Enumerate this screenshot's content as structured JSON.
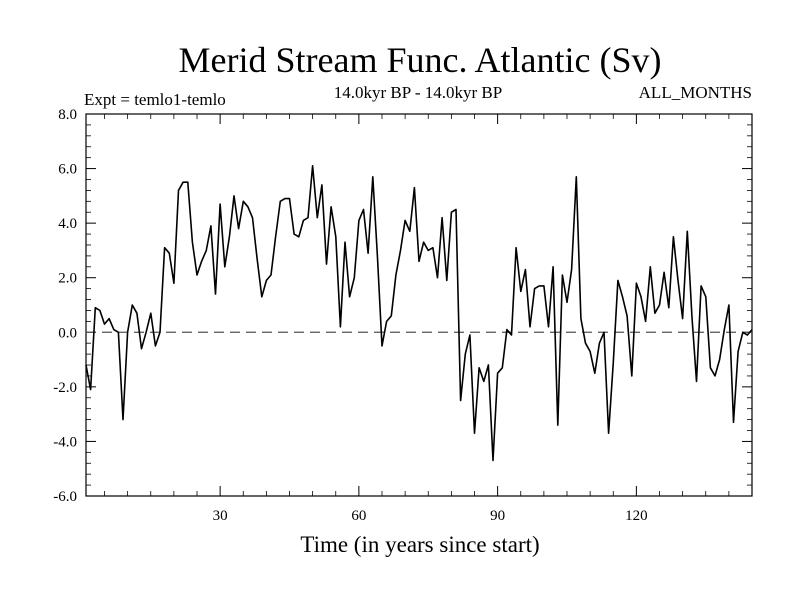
{
  "chart_data": {
    "type": "line",
    "title": "Merid Stream Func. Atlantic (Sv)",
    "subtitle_left": "Expt = temlo1-temlo",
    "subtitle_center": "14.0kyr BP - 14.0kyr BP",
    "subtitle_right": "ALL_MONTHS",
    "xlabel": "Time (in years since start)",
    "ylabel": "",
    "xlim": [
      1,
      145
    ],
    "ylim": [
      -6,
      8
    ],
    "x_ticks": [
      30,
      60,
      90,
      120
    ],
    "y_ticks": [
      -6,
      -4,
      -2,
      0,
      2,
      4,
      6,
      8
    ],
    "y_tick_labels": [
      "-6.0",
      "-4.0",
      "-2.0",
      "0.0",
      "2.0",
      "4.0",
      "6.0",
      "8.0"
    ],
    "reference_line": {
      "y": 0,
      "style": "dashed"
    },
    "series": [
      {
        "name": "Merid Stream Func.",
        "x": [
          1,
          2,
          3,
          4,
          5,
          6,
          7,
          8,
          9,
          10,
          11,
          12,
          13,
          14,
          15,
          16,
          17,
          18,
          19,
          20,
          21,
          22,
          23,
          24,
          25,
          26,
          27,
          28,
          29,
          30,
          31,
          32,
          33,
          34,
          35,
          36,
          37,
          38,
          39,
          40,
          41,
          42,
          43,
          44,
          45,
          46,
          47,
          48,
          49,
          50,
          51,
          52,
          53,
          54,
          55,
          56,
          57,
          58,
          59,
          60,
          61,
          62,
          63,
          64,
          65,
          66,
          67,
          68,
          69,
          70,
          71,
          72,
          73,
          74,
          75,
          76,
          77,
          78,
          79,
          80,
          81,
          82,
          83,
          84,
          85,
          86,
          87,
          88,
          89,
          90,
          91,
          92,
          93,
          94,
          95,
          96,
          97,
          98,
          99,
          100,
          101,
          102,
          103,
          104,
          105,
          106,
          107,
          108,
          109,
          110,
          111,
          112,
          113,
          114,
          115,
          116,
          117,
          118,
          119,
          120,
          121,
          122,
          123,
          124,
          125,
          126,
          127,
          128,
          129,
          130,
          131,
          132,
          133,
          134,
          135,
          136,
          137,
          138,
          139,
          140,
          141,
          142,
          143,
          144,
          145
        ],
        "values": [
          -1.2,
          -2.1,
          0.9,
          0.8,
          0.3,
          0.5,
          0.1,
          0.0,
          -3.2,
          0.0,
          1.0,
          0.7,
          -0.6,
          0.0,
          0.7,
          -0.5,
          0.0,
          3.1,
          2.9,
          1.8,
          5.2,
          5.5,
          5.5,
          3.3,
          2.1,
          2.6,
          3.0,
          3.9,
          1.4,
          4.7,
          2.4,
          3.5,
          5.0,
          3.8,
          4.8,
          4.6,
          4.2,
          2.7,
          1.3,
          1.9,
          2.1,
          3.5,
          4.8,
          4.9,
          4.9,
          3.6,
          3.5,
          4.1,
          4.2,
          6.1,
          4.2,
          5.4,
          2.5,
          4.6,
          3.5,
          0.2,
          3.3,
          1.3,
          2.0,
          4.1,
          4.5,
          2.9,
          5.7,
          2.8,
          -0.5,
          0.4,
          0.6,
          2.1,
          3.0,
          4.1,
          3.7,
          5.3,
          2.6,
          3.3,
          3.0,
          3.1,
          2.0,
          4.2,
          1.9,
          4.4,
          4.5,
          -2.5,
          -0.8,
          -0.1,
          -3.7,
          -1.3,
          -1.8,
          -1.2,
          -4.7,
          -1.5,
          -1.3,
          0.1,
          -0.1,
          3.1,
          1.5,
          2.3,
          0.2,
          1.6,
          1.7,
          1.7,
          0.2,
          2.4,
          -3.4,
          2.1,
          1.1,
          2.3,
          5.7,
          0.5,
          -0.4,
          -0.7,
          -1.5,
          -0.4,
          0.0,
          -3.7,
          -1.1,
          1.9,
          1.3,
          0.6,
          -1.6,
          1.8,
          1.3,
          0.4,
          2.4,
          0.7,
          1.0,
          2.2,
          0.9,
          3.5,
          1.9,
          0.5,
          3.7,
          0.6,
          -1.8,
          1.7,
          1.3,
          -1.3,
          -1.6,
          -1.0,
          0.1,
          1.0,
          -3.3,
          -0.7,
          0.0,
          -0.1,
          0.1
        ]
      }
    ]
  }
}
